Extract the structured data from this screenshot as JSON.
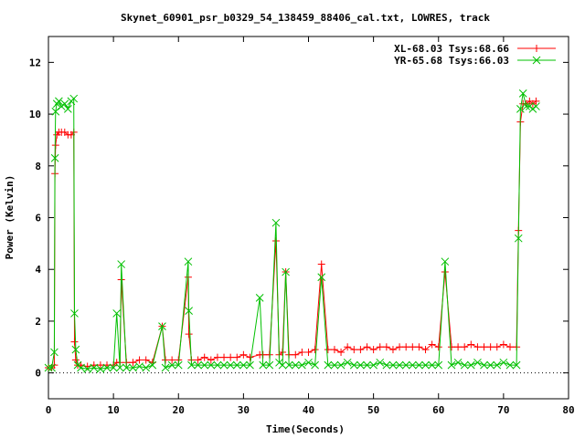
{
  "chart_data": {
    "type": "line",
    "title": "Skynet_60901_psr_b0329_54_138459_88406_cal.txt, LOWRES, track",
    "xlabel": "Time(Seconds)",
    "ylabel": "Power (Kelvin)",
    "xlim": [
      0,
      80
    ],
    "ylim": [
      -1,
      13
    ],
    "xticks": [
      0,
      10,
      20,
      30,
      40,
      50,
      60,
      70,
      80
    ],
    "yticks": [
      0,
      2,
      4,
      6,
      8,
      10,
      12
    ],
    "grid": false,
    "legend_position": "top-right",
    "series": [
      {
        "name": "XL-68.03 Tsys:68.66",
        "color": "#ff0000",
        "marker": "plus",
        "x": [
          0.0,
          0.5,
          0.9,
          1.0,
          1.1,
          1.3,
          1.6,
          2.0,
          2.5,
          3.0,
          3.5,
          3.9,
          4.0,
          4.2,
          4.5,
          5.0,
          6.0,
          7.0,
          8.0,
          9.0,
          10.0,
          10.5,
          11.0,
          11.2,
          12.0,
          13.0,
          14.0,
          15.0,
          16.0,
          17.5,
          18.0,
          19.0,
          20.0,
          21.5,
          21.6,
          22.0,
          23.0,
          24.0,
          25.0,
          26.0,
          27.0,
          28.0,
          29.0,
          30.0,
          31.0,
          32.5,
          33.0,
          34.0,
          35.0,
          35.5,
          36.0,
          36.5,
          37.0,
          38.0,
          39.0,
          40.0,
          41.0,
          42.0,
          43.0,
          44.0,
          45.0,
          46.0,
          47.0,
          48.0,
          49.0,
          50.0,
          51.0,
          52.0,
          53.0,
          54.0,
          55.0,
          56.0,
          57.0,
          58.0,
          59.0,
          60.0,
          61.0,
          62.0,
          63.0,
          64.0,
          65.0,
          66.0,
          67.0,
          68.0,
          69.0,
          70.0,
          71.0,
          72.0,
          72.3,
          72.6,
          73.0,
          73.5,
          74.0,
          74.5,
          75.0
        ],
        "y": [
          0.2,
          0.2,
          0.3,
          7.7,
          8.8,
          9.2,
          9.3,
          9.3,
          9.3,
          9.2,
          9.2,
          9.3,
          1.2,
          0.5,
          0.3,
          0.3,
          0.25,
          0.3,
          0.3,
          0.3,
          0.3,
          0.4,
          0.4,
          3.6,
          0.4,
          0.4,
          0.5,
          0.5,
          0.4,
          1.8,
          0.5,
          0.5,
          0.5,
          3.7,
          1.5,
          0.5,
          0.5,
          0.6,
          0.5,
          0.6,
          0.6,
          0.6,
          0.6,
          0.7,
          0.6,
          0.7,
          0.7,
          0.7,
          5.1,
          0.7,
          0.8,
          3.9,
          0.7,
          0.7,
          0.8,
          0.8,
          0.9,
          4.2,
          0.9,
          0.9,
          0.8,
          1.0,
          0.9,
          0.9,
          1.0,
          0.9,
          1.0,
          1.0,
          0.9,
          1.0,
          1.0,
          1.0,
          1.0,
          0.9,
          1.1,
          1.0,
          3.9,
          1.0,
          1.0,
          1.0,
          1.1,
          1.0,
          1.0,
          1.0,
          1.0,
          1.1,
          1.0,
          1.0,
          5.5,
          9.7,
          10.4,
          10.4,
          10.5,
          10.4,
          10.5
        ]
      },
      {
        "name": "YR-65.68 Tsys:66.03",
        "color": "#00c000",
        "marker": "cross",
        "x": [
          0.0,
          0.5,
          0.9,
          1.0,
          1.1,
          1.3,
          1.6,
          2.0,
          2.5,
          3.0,
          3.5,
          3.9,
          4.0,
          4.2,
          4.5,
          5.0,
          6.0,
          7.0,
          8.0,
          9.0,
          10.0,
          10.5,
          11.0,
          11.2,
          12.0,
          13.0,
          14.0,
          15.0,
          16.0,
          17.5,
          18.0,
          19.0,
          20.0,
          21.5,
          21.6,
          22.0,
          23.0,
          24.0,
          25.0,
          26.0,
          27.0,
          28.0,
          29.0,
          30.0,
          31.0,
          32.5,
          33.0,
          34.0,
          35.0,
          35.5,
          36.0,
          36.5,
          37.0,
          38.0,
          39.0,
          40.0,
          41.0,
          42.0,
          43.0,
          44.0,
          45.0,
          46.0,
          47.0,
          48.0,
          49.0,
          50.0,
          51.0,
          52.0,
          53.0,
          54.0,
          55.0,
          56.0,
          57.0,
          58.0,
          59.0,
          60.0,
          61.0,
          62.0,
          63.0,
          64.0,
          65.0,
          66.0,
          67.0,
          68.0,
          69.0,
          70.0,
          71.0,
          72.0,
          72.3,
          72.6,
          73.0,
          73.5,
          74.0,
          74.5,
          75.0
        ],
        "y": [
          0.2,
          0.2,
          0.8,
          8.3,
          10.1,
          10.4,
          10.5,
          10.3,
          10.4,
          10.2,
          10.5,
          10.6,
          2.3,
          0.9,
          0.3,
          0.2,
          0.15,
          0.2,
          0.15,
          0.2,
          0.2,
          2.3,
          0.2,
          4.2,
          0.2,
          0.2,
          0.25,
          0.2,
          0.3,
          1.8,
          0.2,
          0.3,
          0.3,
          4.3,
          2.4,
          0.3,
          0.3,
          0.3,
          0.3,
          0.3,
          0.3,
          0.3,
          0.3,
          0.3,
          0.3,
          2.9,
          0.3,
          0.3,
          5.8,
          0.4,
          0.3,
          3.9,
          0.3,
          0.3,
          0.3,
          0.4,
          0.3,
          3.7,
          0.3,
          0.3,
          0.3,
          0.4,
          0.3,
          0.3,
          0.3,
          0.3,
          0.4,
          0.3,
          0.3,
          0.3,
          0.3,
          0.3,
          0.3,
          0.3,
          0.3,
          0.3,
          4.3,
          0.3,
          0.4,
          0.3,
          0.3,
          0.4,
          0.3,
          0.3,
          0.3,
          0.4,
          0.3,
          0.3,
          5.2,
          10.2,
          10.8,
          10.3,
          10.3,
          10.2,
          10.3
        ]
      }
    ]
  }
}
